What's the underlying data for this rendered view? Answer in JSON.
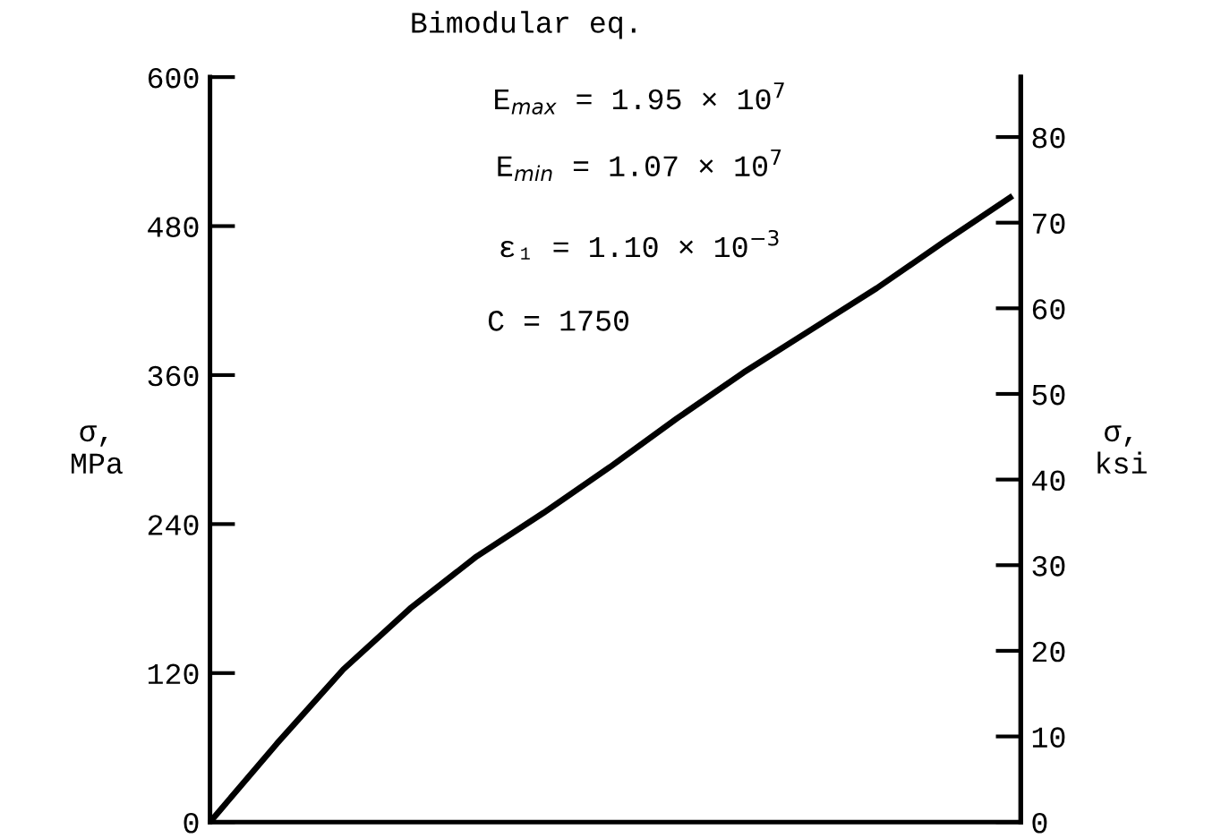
{
  "chart_data": {
    "type": "line",
    "ylabel": "σ,\nMPa",
    "y2label": "σ,\nksi",
    "categories": [
      null,
      null,
      null,
      null,
      null,
      null,
      null,
      null,
      null,
      null,
      null,
      null,
      null
    ],
    "series": [
      {
        "color": "#000000",
        "values": [
          0,
          63,
          123,
          172,
          214,
          249,
          286,
          325,
          362,
          396,
          430,
          467,
          503
        ]
      }
    ],
    "ylim": [
      0,
      600
    ],
    "yticks": [
      0,
      120,
      240,
      360,
      480,
      600
    ],
    "y2lim": [
      0,
      87
    ],
    "y2ticks": [
      0,
      10,
      20,
      30,
      40,
      50,
      60,
      70,
      80
    ],
    "annotations": [
      "Bimodular eq.",
      "E$_{max}$ = 1.95 × 10$^{7}$",
      "E$_{min}$ = 1.07 × 10$^{7}$",
      "ε₁ = 1.10 × 10$^{−3}$",
      "C = 1750"
    ],
    "grid": false,
    "legend": false,
    "marker": "none",
    "line_style": "solid"
  }
}
